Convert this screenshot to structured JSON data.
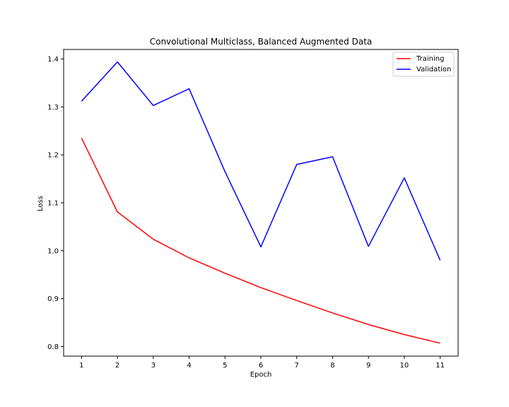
{
  "chart_data": {
    "type": "line",
    "title": "Convolutional Multiclass, Balanced Augmented Data",
    "xlabel": "Epoch",
    "ylabel": "Loss",
    "x": [
      1,
      2,
      3,
      4,
      5,
      6,
      7,
      8,
      9,
      10,
      11
    ],
    "x_ticks": [
      "1",
      "2",
      "3",
      "4",
      "5",
      "6",
      "7",
      "8",
      "9",
      "10",
      "11"
    ],
    "y_ticks": [
      "0.8",
      "0.9",
      "1.0",
      "1.1",
      "1.2",
      "1.3",
      "1.4"
    ],
    "xlim": [
      0.5,
      11.5
    ],
    "ylim": [
      0.78,
      1.42
    ],
    "grid": false,
    "legend_position": "upper right",
    "series": [
      {
        "name": "Training",
        "color": "#ff0000",
        "values": [
          1.235,
          1.081,
          1.024,
          0.985,
          0.953,
          0.923,
          0.896,
          0.87,
          0.846,
          0.825,
          0.807
        ]
      },
      {
        "name": "Validation",
        "color": "#0000ff",
        "values": [
          1.312,
          1.394,
          1.303,
          1.338,
          1.165,
          1.008,
          1.18,
          1.196,
          1.009,
          1.152,
          0.98
        ]
      }
    ]
  }
}
